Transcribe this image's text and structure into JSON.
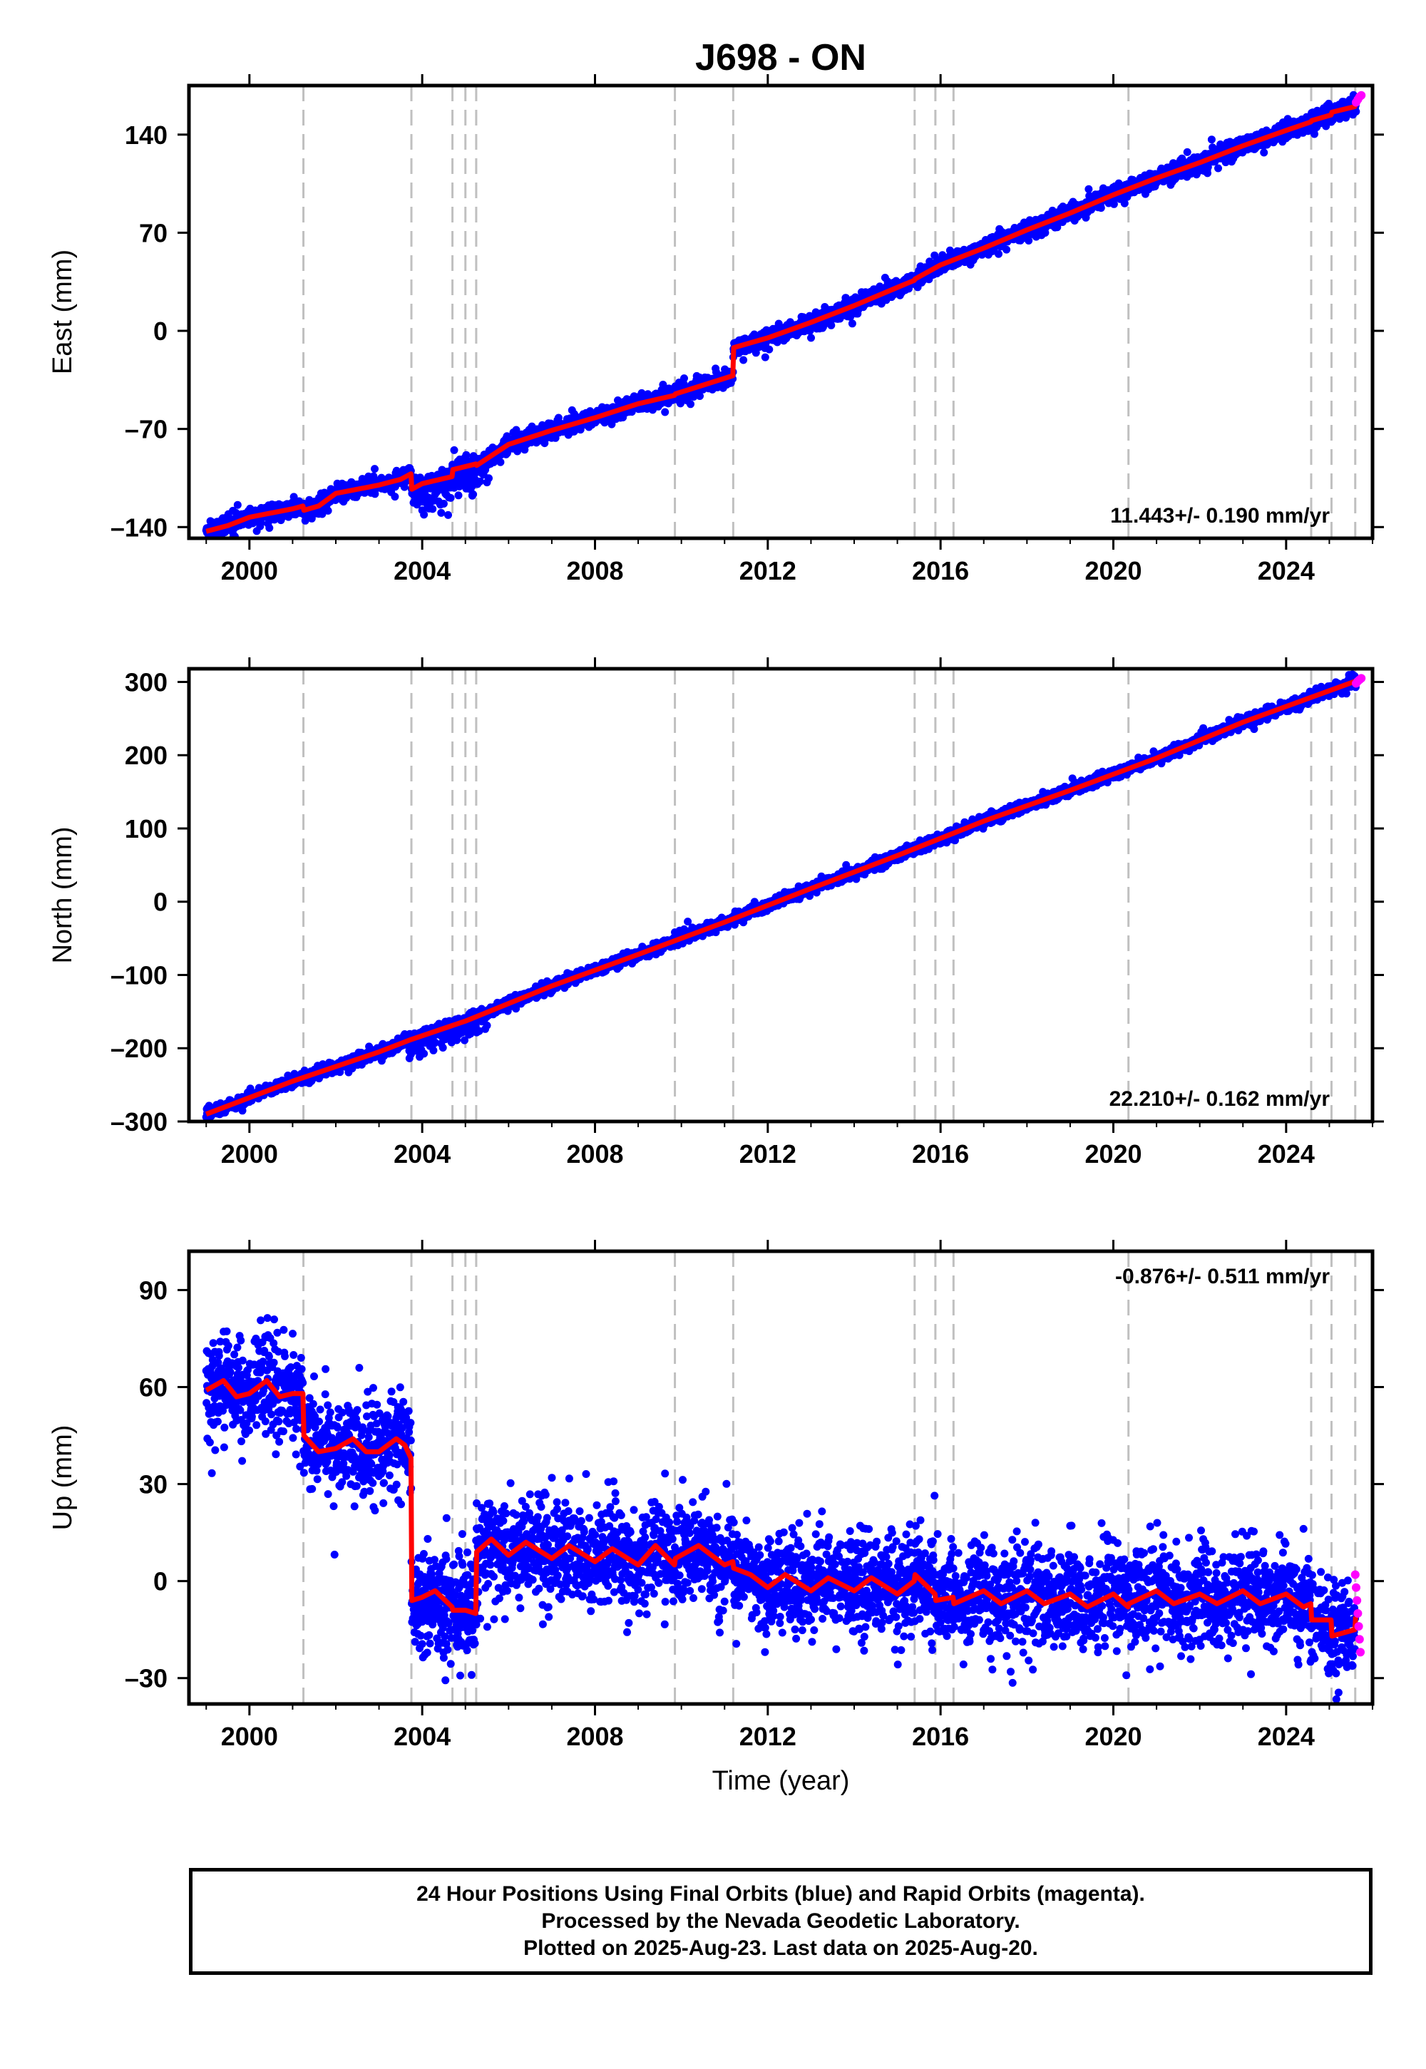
{
  "title": "J698 - ON",
  "colors": {
    "final_orbits": "#0000ff",
    "rapid_orbits": "#ff00ff",
    "model": "#ff0000",
    "event_lines": "#c0c0c0",
    "frame": "#000000"
  },
  "chart_data": [
    {
      "id": "east",
      "type": "scatter",
      "ylabel": "East (mm)",
      "xlabel": "",
      "xlim": [
        1998.6,
        2026.0
      ],
      "ylim": [
        -148,
        175
      ],
      "xticks": [
        "2000",
        "2004",
        "2008",
        "2012",
        "2016",
        "2020",
        "2024"
      ],
      "yticks": [
        "140",
        "70",
        "0",
        "–70",
        "–140"
      ],
      "rate": "11.443+/- 0.190 mm/yr",
      "rate_position": "bottom-right",
      "event_lines": [
        2001.25,
        2003.75,
        2004.7,
        2005.0,
        2005.25,
        2009.85,
        2011.2,
        2015.4,
        2015.88,
        2016.3,
        2020.35,
        2024.58,
        2025.05,
        2025.6
      ],
      "model": {
        "x": [
          1999.0,
          1999.5,
          2000.0,
          2000.5,
          2001.0,
          2001.24,
          2001.26,
          2001.6,
          2002.0,
          2002.5,
          2003.0,
          2003.5,
          2003.74,
          2003.76,
          2004.0,
          2004.69,
          2004.71,
          2005.24,
          2005.26,
          2006.0,
          2007.0,
          2008.0,
          2009.0,
          2009.84,
          2009.86,
          2011.19,
          2011.21,
          2012.0,
          2013.0,
          2014.0,
          2015.0,
          2015.39,
          2015.41,
          2016.0,
          2017.0,
          2018.0,
          2019.0,
          2020.0,
          2021.0,
          2022.0,
          2023.0,
          2024.0,
          2024.57,
          2024.59,
          2025.04,
          2025.06,
          2025.59,
          2025.61
        ],
        "y": [
          -143,
          -139,
          -133,
          -130,
          -127,
          -125,
          -128,
          -125,
          -116,
          -113,
          -110,
          -106,
          -102,
          -113,
          -109,
          -104,
          -99,
          -95,
          -96,
          -81,
          -71,
          -62,
          -52,
          -46,
          -45,
          -32,
          -12,
          -5,
          6,
          18,
          31,
          36,
          37,
          47,
          59,
          72,
          84,
          97,
          109,
          120,
          132,
          143,
          149,
          150,
          154,
          156,
          160,
          162
        ]
      },
      "noise_mm": 2.8,
      "extra_outliers": [
        [
          2003.8,
          2005.2,
          -20,
          8
        ],
        [
          2004.7,
          2005.6,
          -12,
          6
        ]
      ],
      "rapid_points": {
        "x": [
          2025.62,
          2025.66,
          2025.7,
          2025.74
        ],
        "y": [
          163,
          165,
          167,
          168
        ]
      }
    },
    {
      "id": "north",
      "type": "scatter",
      "ylabel": "North (mm)",
      "xlabel": "",
      "xlim": [
        1998.6,
        2026.0
      ],
      "ylim": [
        -300,
        318
      ],
      "xticks": [
        "2000",
        "2004",
        "2008",
        "2012",
        "2016",
        "2020",
        "2024"
      ],
      "yticks": [
        "300",
        "200",
        "100",
        "0",
        "–100",
        "–200",
        "–300"
      ],
      "rate": "22.210+/- 0.162 mm/yr",
      "rate_position": "bottom-right",
      "event_lines": [
        2001.25,
        2003.75,
        2004.7,
        2005.0,
        2005.25,
        2009.85,
        2011.2,
        2015.4,
        2015.88,
        2016.3,
        2020.35,
        2024.58,
        2025.05,
        2025.6
      ],
      "model": {
        "x": [
          1999.0,
          2001.0,
          2003.0,
          2003.75,
          2005.0,
          2007.0,
          2009.0,
          2011.0,
          2013.0,
          2015.0,
          2017.0,
          2019.0,
          2021.0,
          2023.0,
          2025.0,
          2025.7
        ],
        "y": [
          -290,
          -245,
          -205,
          -188,
          -163,
          -115,
          -72,
          -28,
          18,
          63,
          110,
          152,
          196,
          245,
          288,
          303
        ]
      },
      "noise_mm": 3.5,
      "extra_outliers": [
        [
          2003.7,
          2005.5,
          -20,
          6
        ]
      ],
      "rapid_points": {
        "x": [
          2025.62,
          2025.66,
          2025.7,
          2025.74
        ],
        "y": [
          298,
          301,
          303,
          305
        ]
      }
    },
    {
      "id": "up",
      "type": "scatter",
      "ylabel": "Up (mm)",
      "xlabel": "Time (year)",
      "xlim": [
        1998.6,
        2026.0
      ],
      "ylim": [
        -38,
        102
      ],
      "xticks": [
        "2000",
        "2004",
        "2008",
        "2012",
        "2016",
        "2020",
        "2024"
      ],
      "yticks": [
        "90",
        "60",
        "30",
        "0",
        "–30"
      ],
      "rate": "-0.876+/- 0.511 mm/yr",
      "rate_position": "top-right",
      "event_lines": [
        2001.25,
        2003.75,
        2004.7,
        2005.0,
        2005.25,
        2009.85,
        2011.2,
        2015.4,
        2015.88,
        2016.3,
        2020.35,
        2024.58,
        2025.05,
        2025.6
      ],
      "model": {
        "x": [
          1999.0,
          1999.4,
          1999.7,
          2000.0,
          2000.4,
          2000.7,
          2001.0,
          2001.24,
          2001.26,
          2001.6,
          2002.0,
          2002.4,
          2002.7,
          2003.0,
          2003.4,
          2003.6,
          2003.74,
          2003.76,
          2004.0,
          2004.3,
          2004.69,
          2004.71,
          2005.0,
          2005.24,
          2005.26,
          2005.6,
          2006.0,
          2006.4,
          2007.0,
          2007.4,
          2008.0,
          2008.4,
          2009.0,
          2009.4,
          2009.84,
          2009.86,
          2010.4,
          2011.0,
          2011.19,
          2011.21,
          2011.6,
          2012.0,
          2012.4,
          2013.0,
          2013.4,
          2014.0,
          2014.4,
          2015.0,
          2015.39,
          2015.41,
          2015.87,
          2015.89,
          2016.29,
          2016.31,
          2017.0,
          2017.4,
          2018.0,
          2018.4,
          2019.0,
          2019.4,
          2020.0,
          2020.34,
          2020.36,
          2021.0,
          2021.4,
          2022.0,
          2022.4,
          2023.0,
          2023.4,
          2024.0,
          2024.4,
          2024.57,
          2024.59,
          2025.04,
          2025.06,
          2025.59,
          2025.61
        ],
        "y": [
          59,
          62,
          57,
          58,
          62,
          57,
          58,
          58,
          45,
          40,
          41,
          44,
          40,
          40,
          44,
          42,
          38,
          -6,
          -5,
          -3,
          -8,
          -9,
          -9,
          -10,
          9,
          13,
          8,
          12,
          7,
          11,
          6,
          10,
          5,
          11,
          5,
          7,
          11,
          5,
          6,
          4,
          2,
          -2,
          2,
          -3,
          1,
          -3,
          1,
          -4,
          0,
          2,
          -4,
          -6,
          -5,
          -7,
          -3,
          -7,
          -3,
          -7,
          -4,
          -8,
          -4,
          -8,
          -7,
          -3,
          -7,
          -4,
          -7,
          -3,
          -7,
          -4,
          -8,
          -7,
          -12,
          -12,
          -17,
          -15,
          -11
        ]
      },
      "noise_mm": 7.5,
      "extra_outliers": [
        [
          2003.8,
          2005.3,
          -10,
          6
        ]
      ],
      "rapid_points": {
        "x": [
          2025.6,
          2025.62,
          2025.64,
          2025.66,
          2025.68,
          2025.7,
          2025.72
        ],
        "y": [
          2,
          -2,
          -6,
          -10,
          -14,
          -18,
          -22
        ]
      }
    }
  ],
  "caption": {
    "line1": "24 Hour Positions Using Final Orbits (blue) and Rapid Orbits (magenta).",
    "line2": "Processed by the Nevada Geodetic Laboratory.",
    "line3": "Plotted on 2025-Aug-23. Last data on 2025-Aug-20."
  }
}
